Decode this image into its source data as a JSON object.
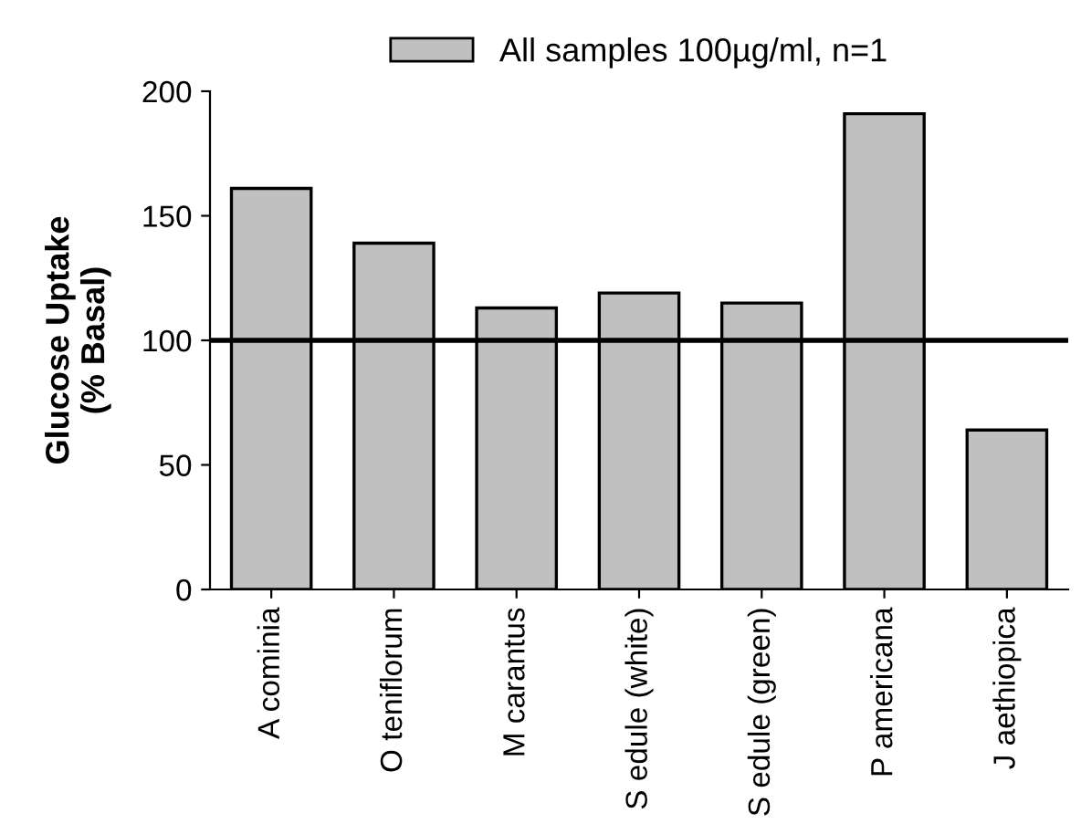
{
  "chart_data": {
    "type": "bar",
    "ylabel": "Glucose Uptake\n(% Basal)",
    "categories": [
      "A cominia",
      "O teniflorum",
      "M carantus",
      "S edule (white)",
      "S edule (green)",
      "P americana",
      "J aethiopica"
    ],
    "series": [
      {
        "name": "All samples 100µg/ml, n=1",
        "color": "#c0c0c0",
        "values": [
          161,
          139,
          113,
          119,
          115,
          191,
          64
        ]
      }
    ],
    "ylim": [
      0,
      200
    ],
    "yticks": [
      0,
      50,
      100,
      150,
      200
    ],
    "ref_lines": [
      {
        "axis": "y",
        "value": 100,
        "label": null,
        "color": "#000000"
      }
    ],
    "grid": false,
    "legend": "top"
  }
}
